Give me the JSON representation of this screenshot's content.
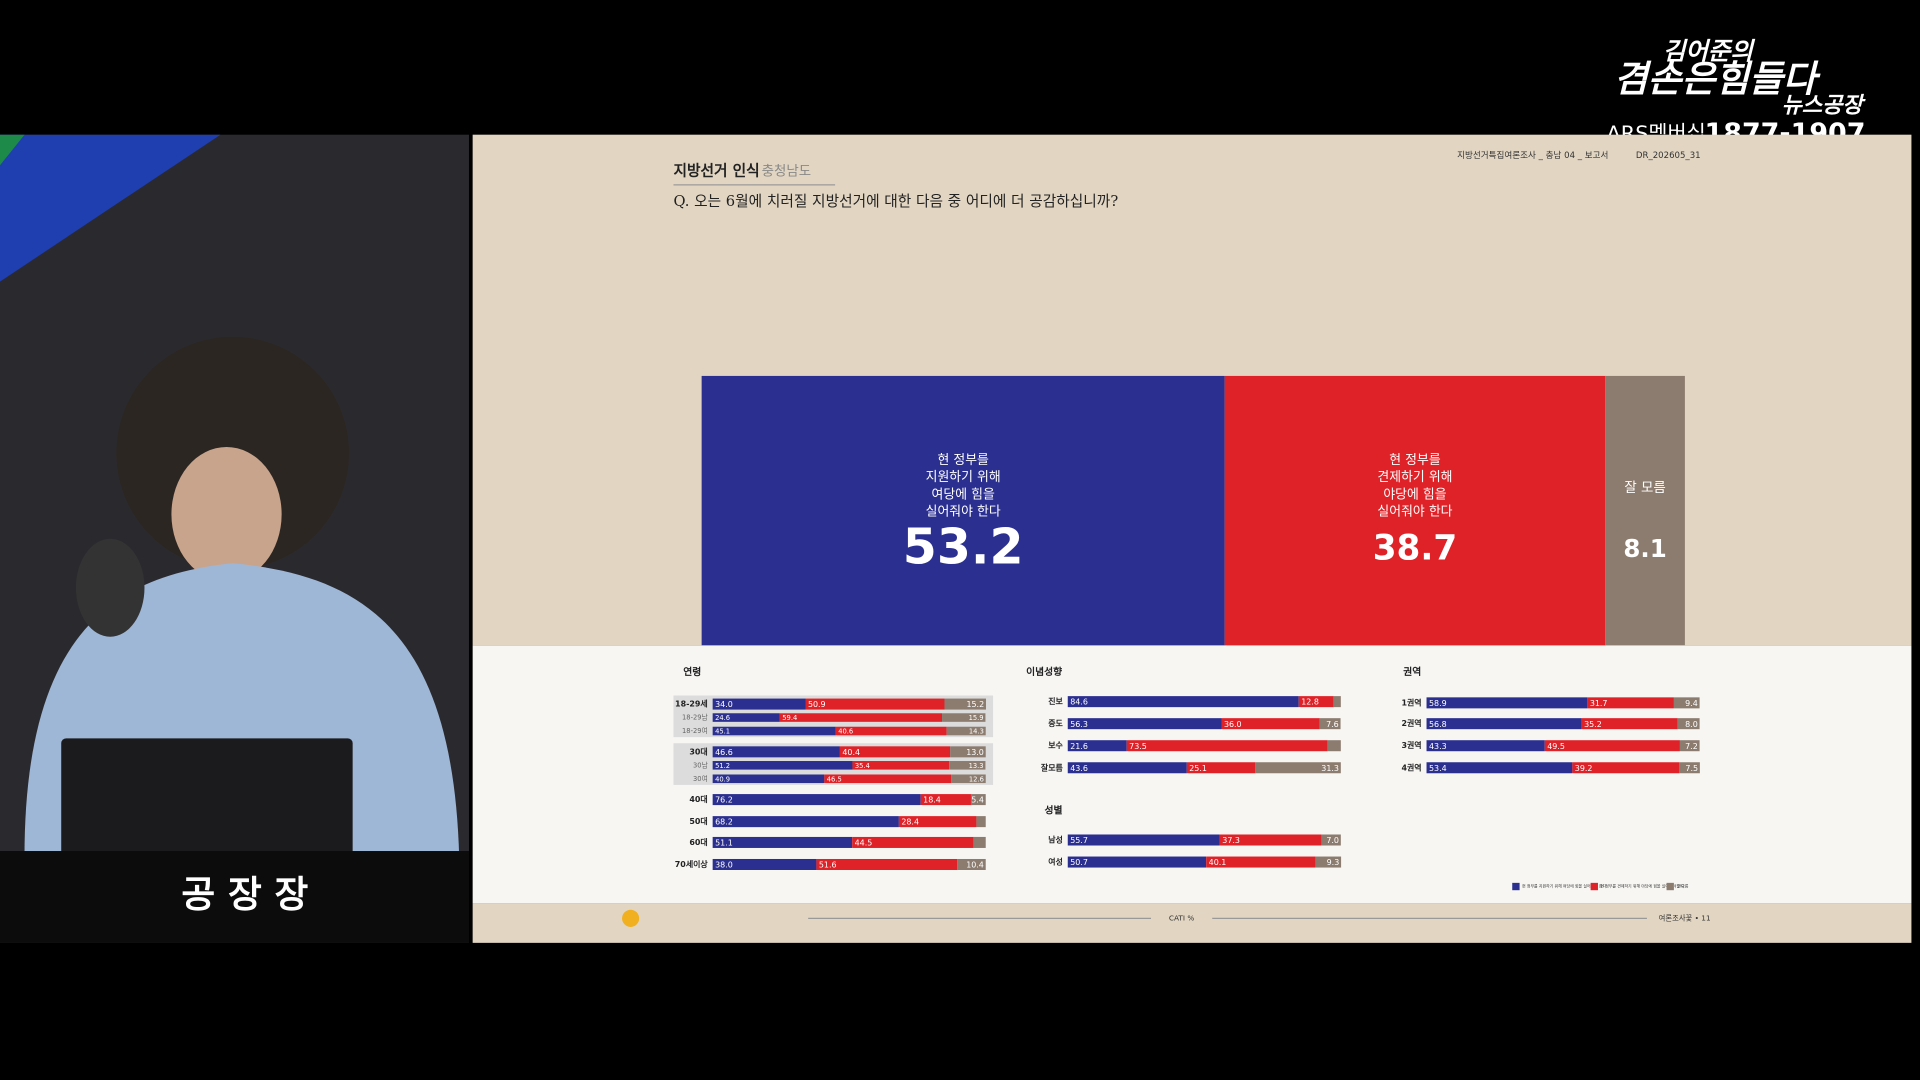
{
  "overlay": {
    "show_name_1": "김어준의",
    "show_name_2": "겸손은힘들다",
    "show_name_3": "뉴스공장",
    "membership": "ARS멤버십",
    "phone": "1877-1907",
    "desk_sign": "공 장 장"
  },
  "slide": {
    "section": "지방선거 인식",
    "region": "충청남도",
    "question": "Q. 오는 6월에 치러질 지방선거에 대한 다음 중 어디에 더 공감하십니까?",
    "report": "지방선거특집여론조사 _ 충남 04 _ 보고서",
    "doc_id": "DR_202605_31",
    "method": "CATI %",
    "publisher": "여론조사꽃 • 11"
  },
  "chart_data": [
    {
      "type": "stacked_bar_100",
      "orientation": "horizontal",
      "xlim": [
        0,
        100
      ],
      "legend": "bottom-right",
      "series": [
        {
          "name": "현 정부를\n지원하기 위해\n여당에 힘을\n실어줘야 한다",
          "color": "#2b2f8f",
          "values": [
            53.2
          ]
        },
        {
          "name": "현 정부를\n견제하기 위해\n야당에 힘을\n실어줘야 한다",
          "color": "#df2228",
          "values": [
            38.7
          ]
        },
        {
          "name": "잘 모름",
          "color": "#8c7c6f",
          "values": [
            8.1
          ]
        }
      ]
    },
    {
      "type": "stacked_bar_100",
      "orientation": "horizontal",
      "title": "연령",
      "xlim": [
        0,
        100
      ],
      "categories": [
        "18-29세",
        "18-29남",
        "18-29여",
        "30대",
        "30남",
        "30여",
        "40대",
        "50대",
        "60대",
        "70세이상"
      ],
      "series": [
        {
          "color": "#2b2f8f",
          "values": [
            34.0,
            24.6,
            45.1,
            46.6,
            51.2,
            40.9,
            76.2,
            68.2,
            51.1,
            38.0
          ],
          "value_labels": [
            "34.0",
            "24.6",
            "45.1",
            "46.6",
            "51.2",
            "40.9",
            "76.2",
            "68.2",
            "51.1",
            "38.0"
          ]
        },
        {
          "color": "#df2228",
          "values": [
            50.9,
            59.4,
            40.6,
            40.4,
            35.4,
            46.5,
            18.4,
            28.4,
            44.5,
            51.6
          ],
          "value_labels": [
            "50.9",
            "59.4",
            "40.6",
            "40.4",
            "35.4",
            "46.5",
            "18.4",
            "28.4",
            "44.5",
            "51.6"
          ]
        },
        {
          "color": "#8c7c6f",
          "values": [
            15.2,
            15.9,
            14.3,
            13.0,
            13.3,
            12.6,
            5.4,
            3.4,
            4.4,
            10.4
          ],
          "value_labels": [
            "15.2",
            "15.9",
            "14.3",
            "13.0",
            "13.3",
            "12.6",
            "5.4",
            null,
            null,
            "10.4"
          ]
        }
      ]
    },
    {
      "type": "stacked_bar_100",
      "orientation": "horizontal",
      "title": "이념성향",
      "xlim": [
        0,
        100
      ],
      "categories": [
        "진보",
        "중도",
        "보수",
        "잘모름"
      ],
      "series": [
        {
          "color": "#2b2f8f",
          "values": [
            84.6,
            56.3,
            21.6,
            43.6
          ],
          "value_labels": [
            "84.6",
            "56.3",
            "21.6",
            "43.6"
          ]
        },
        {
          "color": "#df2228",
          "values": [
            12.8,
            36.0,
            73.5,
            25.1
          ],
          "value_labels": [
            "12.8",
            "36.0",
            "73.5",
            "25.1"
          ]
        },
        {
          "color": "#8c7c6f",
          "values": [
            2.6,
            7.6,
            4.9,
            31.3
          ],
          "value_labels": [
            null,
            "7.6",
            null,
            "31.3"
          ]
        }
      ]
    },
    {
      "type": "stacked_bar_100",
      "orientation": "horizontal",
      "title": "성별",
      "xlim": [
        0,
        100
      ],
      "categories": [
        "남성",
        "여성"
      ],
      "series": [
        {
          "color": "#2b2f8f",
          "values": [
            55.7,
            50.7
          ],
          "value_labels": [
            "55.7",
            "50.7"
          ]
        },
        {
          "color": "#df2228",
          "values": [
            37.3,
            40.1
          ],
          "value_labels": [
            "37.3",
            "40.1"
          ]
        },
        {
          "color": "#8c7c6f",
          "values": [
            7.0,
            9.3
          ],
          "value_labels": [
            "7.0",
            "9.3"
          ]
        }
      ]
    },
    {
      "type": "stacked_bar_100",
      "orientation": "horizontal",
      "title": "권역",
      "xlim": [
        0,
        100
      ],
      "categories": [
        "1권역",
        "2권역",
        "3권역",
        "4권역"
      ],
      "series": [
        {
          "color": "#2b2f8f",
          "values": [
            58.9,
            56.8,
            43.3,
            53.4
          ],
          "value_labels": [
            "58.9",
            "56.8",
            "43.3",
            "53.4"
          ]
        },
        {
          "color": "#df2228",
          "values": [
            31.7,
            35.2,
            49.5,
            39.2
          ],
          "value_labels": [
            "31.7",
            "35.2",
            "49.5",
            "39.2"
          ]
        },
        {
          "color": "#8c7c6f",
          "values": [
            9.4,
            8.0,
            7.2,
            7.5
          ],
          "value_labels": [
            "9.4",
            "8.0",
            "7.2",
            "7.5"
          ]
        }
      ]
    }
  ]
}
